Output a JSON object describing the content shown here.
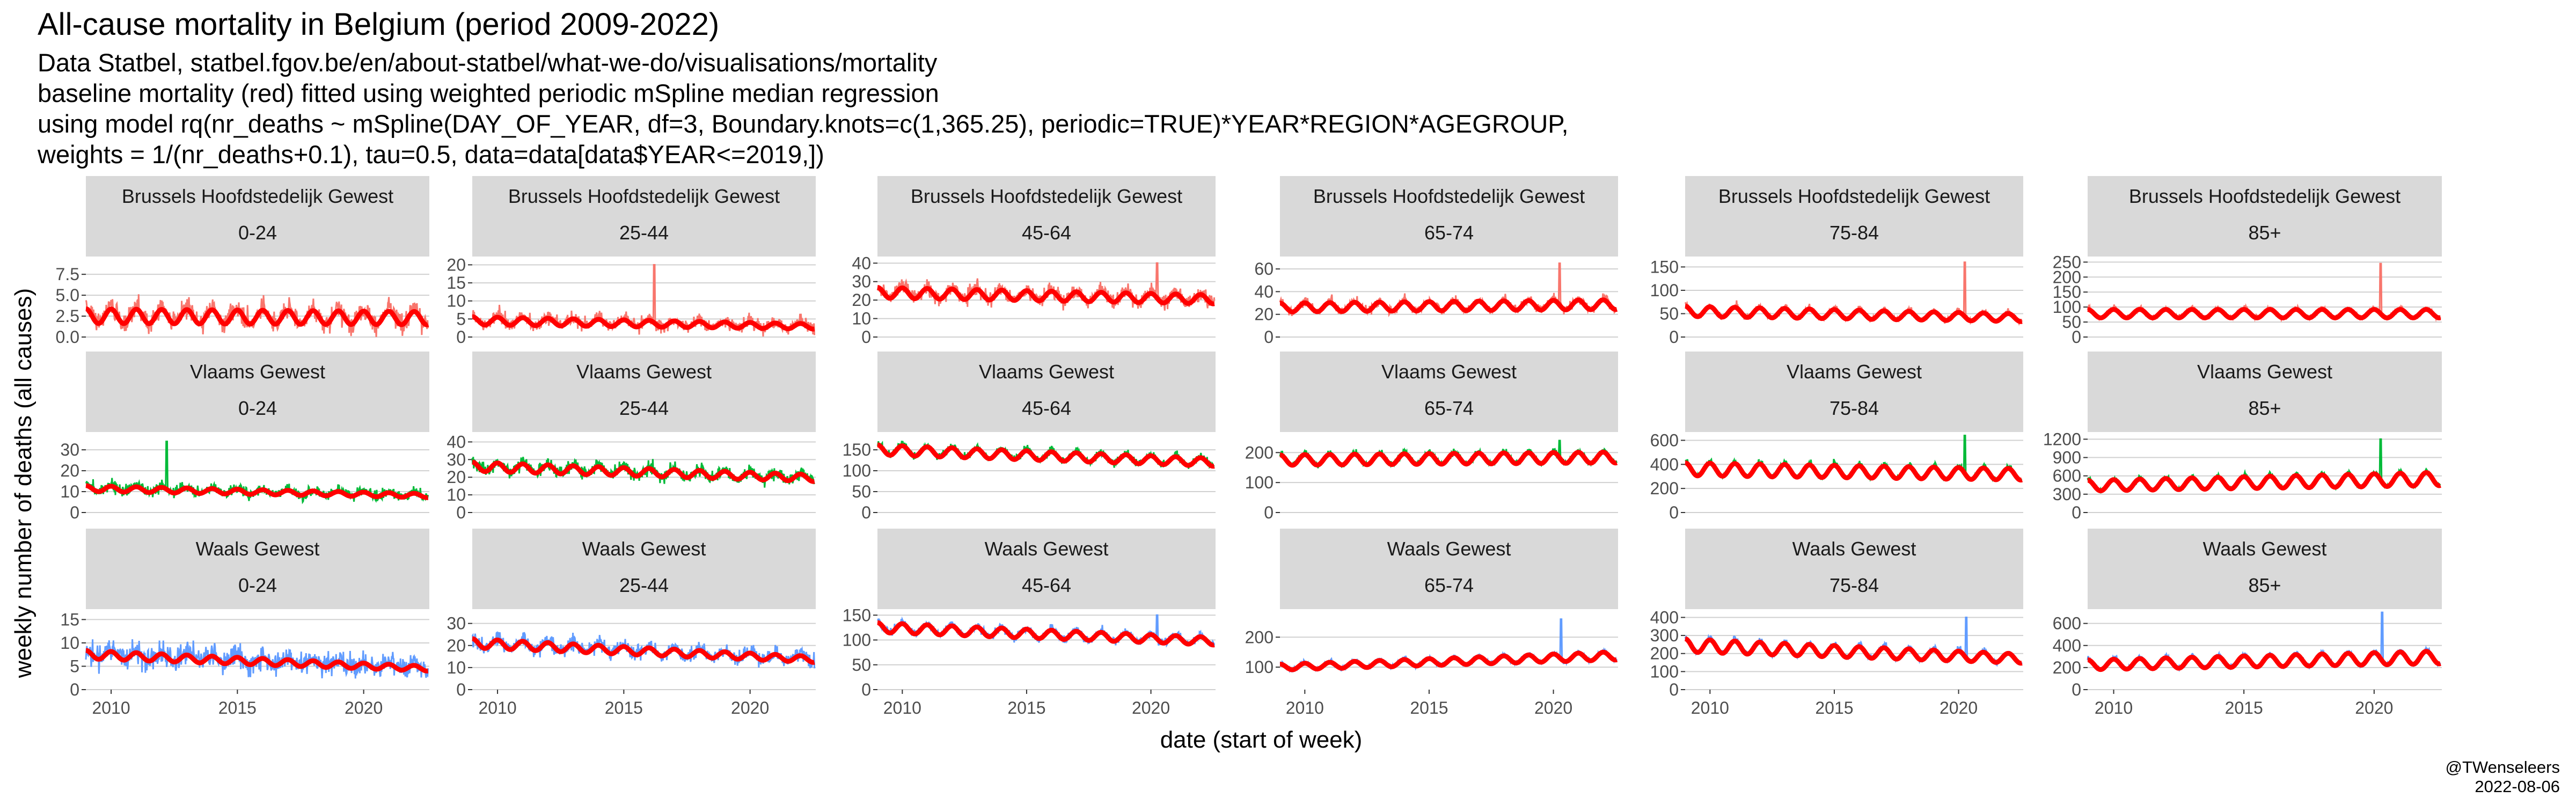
{
  "chart_data": {
    "type": "line",
    "title": "All-cause mortality in Belgium (period 2009-2022)",
    "subtitle": [
      "Data Statbel, statbel.fgov.be/en/about-statbel/what-we-do/visualisations/mortality",
      "baseline mortality (red) fitted using weighted periodic mSpline median regression",
      "using model rq(nr_deaths ~ mSpline(DAY_OF_YEAR, df=3, Boundary.knots=c(1,365.25), periodic=TRUE)*YEAR*REGION*AGEGROUP,",
      "weights = 1/(nr_deaths+0.1), tau=0.5, data=data[data$YEAR<=2019,])"
    ],
    "xlabel": "date (start of week)",
    "ylabel": "weekly number of deaths (all causes)",
    "x_ticks": [
      "2010",
      "2015",
      "2020"
    ],
    "xlim": [
      "2009-01-01",
      "2022-07-31"
    ],
    "baseline_color": "#FF0000",
    "grid": true,
    "age_groups": [
      "0-24",
      "25-44",
      "45-64",
      "65-74",
      "75-84",
      "85+"
    ],
    "regions": [
      {
        "name": "Brussels Hoofdstedelijk Gewest",
        "color": "#F8766D",
        "panels": [
          {
            "age": "0-24",
            "yticks": [
              "0.0",
              "2.5",
              "5.0",
              "7.5"
            ],
            "ylim": [
              0,
              9.5
            ],
            "baseline": 2.5,
            "season_amp": 0.35,
            "trend": -0.1,
            "noise": 1.5,
            "spike": null,
            "lo": 0,
            "hi": 9
          },
          {
            "age": "25-44",
            "yticks": [
              "0",
              "5",
              "10",
              "15",
              "20"
            ],
            "ylim": [
              0,
              22
            ],
            "baseline": 4.5,
            "season_amp": 0.25,
            "trend": -0.35,
            "noise": 2.2,
            "spike": {
              "year": 2016.2,
              "value": 20
            },
            "lo": 0,
            "hi": 21
          },
          {
            "age": "45-64",
            "yticks": [
              "0",
              "10",
              "20",
              "30",
              "40"
            ],
            "ylim": [
              0,
              43
            ],
            "baseline": 24,
            "season_amp": 0.12,
            "trend": -0.15,
            "noise": 5,
            "spike": {
              "year": 2020.25,
              "value": 40
            },
            "lo": 5,
            "hi": 42
          },
          {
            "age": "65-74",
            "yticks": [
              "0",
              "20",
              "40",
              "60"
            ],
            "ylim": [
              0,
              70
            ],
            "baseline": 26,
            "season_amp": 0.15,
            "trend": 0.1,
            "noise": 4.5,
            "spike": {
              "year": 2020.25,
              "value": 65
            },
            "lo": 8,
            "hi": 68
          },
          {
            "age": "75-84",
            "yticks": [
              "0",
              "50",
              "100",
              "150"
            ],
            "ylim": [
              0,
              170
            ],
            "baseline": 55,
            "season_amp": 0.2,
            "trend": -0.25,
            "noise": 7,
            "spike": {
              "year": 2020.25,
              "value": 160
            },
            "lo": 15,
            "hi": 165
          },
          {
            "age": "85+",
            "yticks": [
              "0",
              "50",
              "100",
              "150",
              "200",
              "250"
            ],
            "ylim": [
              0,
              265
            ],
            "baseline": 78,
            "season_amp": 0.18,
            "trend": 0.0,
            "noise": 9,
            "spike": {
              "year": 2020.25,
              "value": 245
            },
            "lo": 30,
            "hi": 255
          }
        ]
      },
      {
        "name": "Vlaams Gewest",
        "color": "#00BA38",
        "panels": [
          {
            "age": "0-24",
            "yticks": [
              "0",
              "10",
              "20",
              "30"
            ],
            "ylim": [
              0,
              38
            ],
            "baseline": 11.5,
            "season_amp": 0.12,
            "trend": -0.3,
            "noise": 3.2,
            "spike": {
              "year": 2012.2,
              "value": 34
            },
            "lo": 0,
            "hi": 36
          },
          {
            "age": "25-44",
            "yticks": [
              "0",
              "10",
              "20",
              "30",
              "40"
            ],
            "ylim": [
              0,
              45
            ],
            "baseline": 26,
            "season_amp": 0.1,
            "trend": -0.25,
            "noise": 4.5,
            "spike": null,
            "lo": 5,
            "hi": 44
          },
          {
            "age": "45-64",
            "yticks": [
              "0",
              "50",
              "100",
              "150"
            ],
            "ylim": [
              0,
              190
            ],
            "baseline": 150,
            "season_amp": 0.08,
            "trend": -0.2,
            "noise": 11,
            "spike": null,
            "lo": 80,
            "hi": 185
          },
          {
            "age": "65-74",
            "yticks": [
              "0",
              "100",
              "200"
            ],
            "ylim": [
              0,
              265
            ],
            "baseline": 175,
            "season_amp": 0.1,
            "trend": 0.05,
            "noise": 12,
            "spike": {
              "year": 2020.25,
              "value": 240
            },
            "lo": 100,
            "hi": 255
          },
          {
            "age": "75-84",
            "yticks": [
              "0",
              "200",
              "400",
              "600"
            ],
            "ylim": [
              0,
              660
            ],
            "baseline": 360,
            "season_amp": 0.15,
            "trend": -0.12,
            "noise": 18,
            "spike": {
              "year": 2020.25,
              "value": 640
            },
            "lo": 150,
            "hi": 650
          },
          {
            "age": "85+",
            "yticks": [
              "0",
              "300",
              "600",
              "900",
              "1200"
            ],
            "ylim": [
              0,
              1300
            ],
            "baseline": 440,
            "season_amp": 0.2,
            "trend": 0.25,
            "noise": 28,
            "spike": {
              "year": 2020.25,
              "value": 1200
            },
            "lo": 200,
            "hi": 1250
          }
        ]
      },
      {
        "name": "Waals Gewest",
        "color": "#619CFF",
        "panels": [
          {
            "age": "0-24",
            "yticks": [
              "0",
              "5",
              "10",
              "15"
            ],
            "ylim": [
              0,
              17
            ],
            "baseline": 7.5,
            "season_amp": 0.12,
            "trend": -0.4,
            "noise": 3,
            "spike": null,
            "lo": 0,
            "hi": 16
          },
          {
            "age": "25-44",
            "yticks": [
              "0",
              "10",
              "20",
              "30"
            ],
            "ylim": [
              0,
              36
            ],
            "baseline": 21,
            "season_amp": 0.1,
            "trend": -0.35,
            "noise": 4,
            "spike": null,
            "lo": 5,
            "hi": 34
          },
          {
            "age": "45-64",
            "yticks": [
              "0",
              "50",
              "100",
              "150"
            ],
            "ylim": [
              0,
              160
            ],
            "baseline": 125,
            "season_amp": 0.08,
            "trend": -0.22,
            "noise": 10,
            "spike": {
              "year": 2020.25,
              "value": 150
            },
            "lo": 60,
            "hi": 155
          },
          {
            "age": "65-74",
            "yticks": [
              "100",
              "200"
            ],
            "ylim": [
              25,
              290
            ],
            "baseline": 100,
            "season_amp": 0.1,
            "trend": 0.38,
            "noise": 8,
            "spike": {
              "year": 2020.3,
              "value": 260
            },
            "lo": 60,
            "hi": 280
          },
          {
            "age": "75-84",
            "yticks": [
              "0",
              "100",
              "200",
              "300",
              "400"
            ],
            "ylim": [
              0,
              440
            ],
            "baseline": 245,
            "season_amp": 0.15,
            "trend": -0.3,
            "noise": 14,
            "spike": {
              "year": 2020.3,
              "value": 400
            },
            "lo": 100,
            "hi": 420
          },
          {
            "age": "85+",
            "yticks": [
              "0",
              "200",
              "400",
              "600"
            ],
            "ylim": [
              0,
              720
            ],
            "baseline": 225,
            "season_amp": 0.2,
            "trend": 0.3,
            "noise": 18,
            "spike": {
              "year": 2020.3,
              "value": 700
            },
            "lo": 120,
            "hi": 710
          }
        ]
      }
    ]
  },
  "footer": {
    "author": "@TWenseleers",
    "date": "2022-08-06"
  }
}
